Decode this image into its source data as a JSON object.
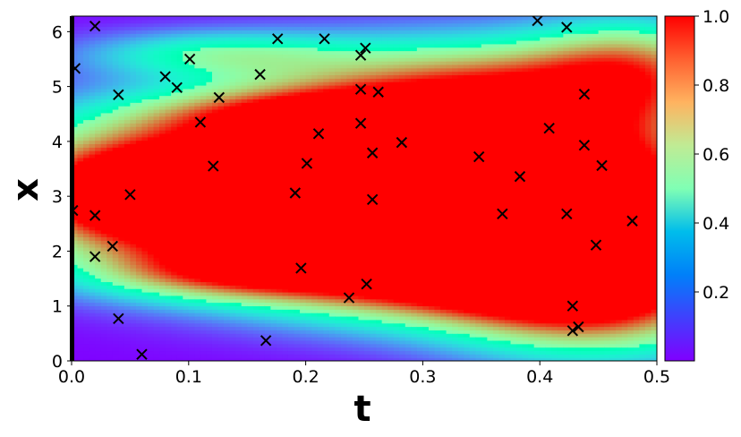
{
  "chart_data": {
    "type": "heatmap",
    "title": "",
    "xlabel": "t",
    "ylabel": "x",
    "xlim": [
      0.0,
      0.5
    ],
    "ylim": [
      0,
      6.283
    ],
    "colormap": "rainbow",
    "colorbar": {
      "range": [
        0.0,
        1.0
      ],
      "ticks": [
        "0.2",
        "0.4",
        "0.6",
        "0.8",
        "1.0"
      ],
      "tick_values": [
        0.2,
        0.4,
        0.6,
        0.8,
        1.0
      ],
      "placement": "right"
    },
    "x_ticks": [
      "0.0",
      "0.1",
      "0.2",
      "0.3",
      "0.4",
      "0.5"
    ],
    "x_tick_values": [
      0.0,
      0.1,
      0.2,
      0.3,
      0.4,
      0.5
    ],
    "y_ticks": [
      "0",
      "1",
      "2",
      "3",
      "4",
      "5",
      "6"
    ],
    "y_tick_values": [
      0,
      1,
      2,
      3,
      4,
      5,
      6
    ],
    "marker": "x",
    "marker_color": "#000000",
    "points": [
      {
        "t": 0.003,
        "x": 5.33
      },
      {
        "t": 0.02,
        "x": 6.1
      },
      {
        "t": 0.04,
        "x": 4.85
      },
      {
        "t": 0.08,
        "x": 5.18
      },
      {
        "t": 0.09,
        "x": 4.98
      },
      {
        "t": 0.101,
        "x": 5.5
      },
      {
        "t": 0.161,
        "x": 5.22
      },
      {
        "t": 0.176,
        "x": 5.87
      },
      {
        "t": 0.216,
        "x": 5.87
      },
      {
        "t": 0.247,
        "x": 5.57
      },
      {
        "t": 0.251,
        "x": 5.7
      },
      {
        "t": 0.247,
        "x": 4.95
      },
      {
        "t": 0.262,
        "x": 4.9
      },
      {
        "t": 0.126,
        "x": 4.8
      },
      {
        "t": 0.11,
        "x": 4.35
      },
      {
        "t": 0.247,
        "x": 4.33
      },
      {
        "t": 0.211,
        "x": 4.14
      },
      {
        "t": 0.282,
        "x": 3.98
      },
      {
        "t": 0.257,
        "x": 3.79
      },
      {
        "t": 0.121,
        "x": 3.55
      },
      {
        "t": 0.201,
        "x": 3.6
      },
      {
        "t": 0.05,
        "x": 3.03
      },
      {
        "t": 0.191,
        "x": 3.06
      },
      {
        "t": 0.257,
        "x": 2.94
      },
      {
        "t": 0.001,
        "x": 2.74
      },
      {
        "t": 0.02,
        "x": 2.65
      },
      {
        "t": 0.035,
        "x": 2.09
      },
      {
        "t": 0.02,
        "x": 1.9
      },
      {
        "t": 0.196,
        "x": 1.69
      },
      {
        "t": 0.237,
        "x": 1.15
      },
      {
        "t": 0.252,
        "x": 1.4
      },
      {
        "t": 0.04,
        "x": 0.77
      },
      {
        "t": 0.06,
        "x": 0.12
      },
      {
        "t": 0.166,
        "x": 0.37
      },
      {
        "t": 0.398,
        "x": 6.2
      },
      {
        "t": 0.423,
        "x": 6.08
      },
      {
        "t": 0.438,
        "x": 4.86
      },
      {
        "t": 0.408,
        "x": 4.24
      },
      {
        "t": 0.438,
        "x": 3.93
      },
      {
        "t": 0.348,
        "x": 3.72
      },
      {
        "t": 0.453,
        "x": 3.56
      },
      {
        "t": 0.383,
        "x": 3.36
      },
      {
        "t": 0.368,
        "x": 2.68
      },
      {
        "t": 0.423,
        "x": 2.68
      },
      {
        "t": 0.479,
        "x": 2.55
      },
      {
        "t": 0.448,
        "x": 2.11
      },
      {
        "t": 0.428,
        "x": 1.0
      },
      {
        "t": 0.433,
        "x": 0.62
      },
      {
        "t": 0.428,
        "x": 0.55
      }
    ]
  }
}
